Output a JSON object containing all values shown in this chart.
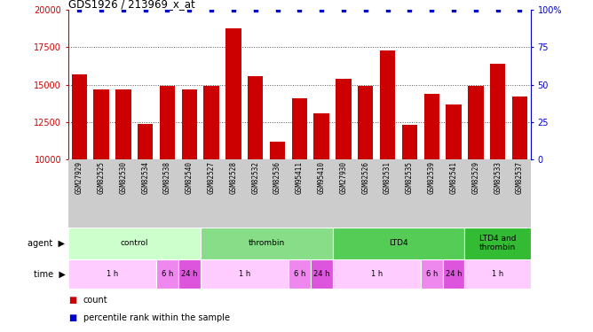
{
  "title": "GDS1926 / 213969_x_at",
  "samples": [
    "GSM27929",
    "GSM82525",
    "GSM82530",
    "GSM82534",
    "GSM82538",
    "GSM82540",
    "GSM82527",
    "GSM82528",
    "GSM82532",
    "GSM82536",
    "GSM95411",
    "GSM95410",
    "GSM27930",
    "GSM82526",
    "GSM82531",
    "GSM82535",
    "GSM82539",
    "GSM82541",
    "GSM82529",
    "GSM82533",
    "GSM82537"
  ],
  "counts": [
    15700,
    14700,
    14700,
    12400,
    14900,
    14700,
    14900,
    18800,
    15600,
    11200,
    14100,
    13100,
    15400,
    14900,
    17300,
    12300,
    14400,
    13700,
    14900,
    16400,
    14200
  ],
  "percentile": [
    100,
    100,
    100,
    100,
    100,
    100,
    100,
    100,
    100,
    100,
    100,
    100,
    100,
    100,
    100,
    100,
    100,
    100,
    100,
    100,
    100
  ],
  "ylim_left": [
    10000,
    20000
  ],
  "ylim_right": [
    0,
    100
  ],
  "yticks_left": [
    10000,
    12500,
    15000,
    17500,
    20000
  ],
  "yticks_right": [
    0,
    25,
    50,
    75,
    100
  ],
  "bar_color": "#cc0000",
  "dot_color": "#0000cc",
  "agent_groups": [
    {
      "label": "control",
      "start": 0,
      "end": 6,
      "color": "#ccffcc"
    },
    {
      "label": "thrombin",
      "start": 6,
      "end": 12,
      "color": "#88dd88"
    },
    {
      "label": "LTD4",
      "start": 12,
      "end": 18,
      "color": "#55cc55"
    },
    {
      "label": "LTD4 and\nthrombin",
      "start": 18,
      "end": 21,
      "color": "#33bb33"
    }
  ],
  "time_groups": [
    {
      "label": "1 h",
      "start": 0,
      "end": 4,
      "color": "#ffccff"
    },
    {
      "label": "6 h",
      "start": 4,
      "end": 5,
      "color": "#ee88ee"
    },
    {
      "label": "24 h",
      "start": 5,
      "end": 6,
      "color": "#dd55dd"
    },
    {
      "label": "1 h",
      "start": 6,
      "end": 10,
      "color": "#ffccff"
    },
    {
      "label": "6 h",
      "start": 10,
      "end": 11,
      "color": "#ee88ee"
    },
    {
      "label": "24 h",
      "start": 11,
      "end": 12,
      "color": "#dd55dd"
    },
    {
      "label": "1 h",
      "start": 12,
      "end": 16,
      "color": "#ffccff"
    },
    {
      "label": "6 h",
      "start": 16,
      "end": 17,
      "color": "#ee88ee"
    },
    {
      "label": "24 h",
      "start": 17,
      "end": 18,
      "color": "#dd55dd"
    },
    {
      "label": "1 h",
      "start": 18,
      "end": 21,
      "color": "#ffccff"
    }
  ],
  "xtick_bg": "#cccccc",
  "legend_count_color": "#cc0000",
  "legend_dot_color": "#0000cc",
  "grid_color": "#555555",
  "background_color": "#ffffff"
}
